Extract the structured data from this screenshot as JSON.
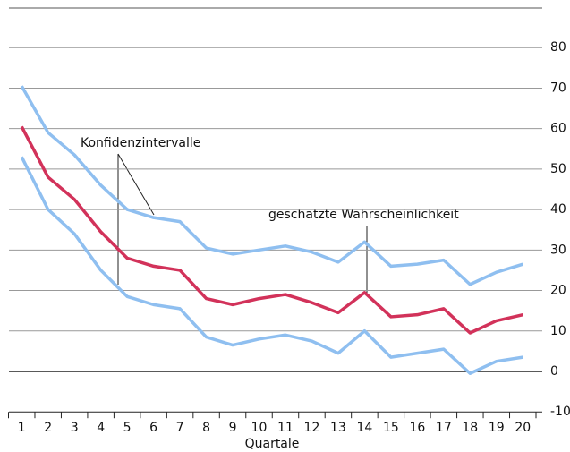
{
  "chart_data": {
    "type": "line",
    "x_label": "Quartale",
    "categories": [
      "1",
      "2",
      "3",
      "4",
      "5",
      "6",
      "7",
      "8",
      "9",
      "10",
      "11",
      "12",
      "13",
      "14",
      "15",
      "16",
      "17",
      "18",
      "19",
      "20"
    ],
    "series": [
      {
        "color": "#8fbff0",
        "values": [
          70.5,
          59,
          53.5,
          46,
          40,
          38,
          37,
          30.5,
          29,
          30,
          31,
          29.5,
          27,
          32,
          26,
          26.5,
          27.5,
          21.5,
          24.5,
          26.5
        ]
      },
      {
        "color": "#d2325a",
        "values": [
          60.5,
          48,
          42.5,
          34.5,
          28,
          26,
          25,
          18,
          16.5,
          18,
          19,
          17,
          14.5,
          19.5,
          13.5,
          14,
          15.5,
          9.5,
          12.5,
          14
        ]
      },
      {
        "color": "#8fbff0",
        "values": [
          53,
          40,
          34,
          25,
          18.5,
          16.5,
          15.5,
          8.5,
          6.5,
          8,
          9,
          7.5,
          4.5,
          10,
          3.5,
          4.5,
          5.5,
          -0.5,
          2.5,
          3.5
        ]
      }
    ],
    "annotations": [
      "Konfidenzintervalle",
      "geschätzte Wahrscheinlichkeit"
    ],
    "ylim": [
      -10,
      90
    ],
    "yticks": [
      -10,
      0,
      10,
      20,
      30,
      40,
      50,
      60,
      70,
      80
    ],
    "grid": true
  }
}
